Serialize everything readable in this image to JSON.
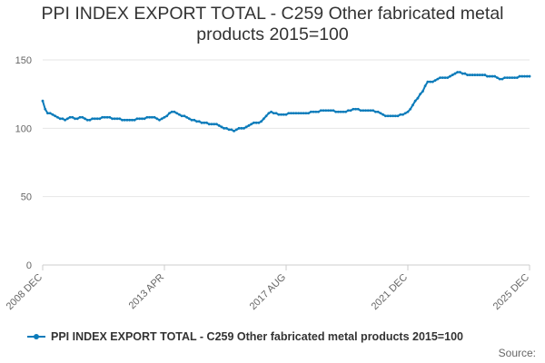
{
  "title_line1": "PPI INDEX EXPORT TOTAL - C259 Other fabricated metal",
  "title_line2": "products 2015=100",
  "legend_label": "PPI INDEX EXPORT TOTAL - C259 Other fabricated metal products 2015=100",
  "source_label": "Source:",
  "colors": {
    "series": "#0b7bba",
    "grid": "#e6e6e6",
    "axis_text": "#666666"
  },
  "chart_data": {
    "type": "line",
    "title": "PPI INDEX EXPORT TOTAL - C259 Other fabricated metal products 2015=100",
    "xlabel": "",
    "ylabel": "",
    "ylim": [
      0,
      150
    ],
    "yticks": [
      0,
      50,
      100,
      150
    ],
    "xticks": [
      "2008 DEC",
      "2013 APR",
      "2017 AUG",
      "2021 DEC",
      "2025 DEC"
    ],
    "grid": true,
    "legend_position": "bottom",
    "series": [
      {
        "name": "PPI INDEX EXPORT TOTAL - C259 Other fabricated metal products 2015=100",
        "x_start": "2008-12",
        "frequency": "monthly",
        "values": [
          120,
          114,
          111,
          111,
          110,
          109,
          108,
          107,
          107,
          106,
          107,
          108,
          108,
          107,
          107,
          108,
          108,
          107,
          106,
          106,
          107,
          107,
          107,
          107,
          108,
          108,
          108,
          108,
          107,
          107,
          107,
          107,
          106,
          106,
          106,
          106,
          106,
          106,
          107,
          107,
          107,
          107,
          108,
          108,
          108,
          108,
          107,
          106,
          107,
          108,
          109,
          111,
          112,
          112,
          111,
          110,
          109,
          109,
          108,
          107,
          106,
          106,
          105,
          105,
          104,
          104,
          104,
          103,
          103,
          103,
          103,
          102,
          101,
          100,
          100,
          99,
          99,
          98,
          99,
          100,
          100,
          100,
          101,
          102,
          103,
          104,
          104,
          104,
          105,
          107,
          109,
          111,
          112,
          111,
          111,
          110,
          110,
          110,
          110,
          111,
          111,
          111,
          111,
          111,
          111,
          111,
          111,
          111,
          112,
          112,
          112,
          112,
          113,
          113,
          113,
          113,
          113,
          113,
          112,
          112,
          112,
          112,
          112,
          113,
          113,
          114,
          114,
          114,
          113,
          113,
          113,
          113,
          113,
          113,
          112,
          112,
          111,
          110,
          109,
          109,
          109,
          109,
          109,
          109,
          110,
          110,
          111,
          112,
          114,
          117,
          120,
          122,
          125,
          127,
          131,
          134,
          134,
          134,
          135,
          136,
          137,
          137,
          137,
          137,
          138,
          139,
          140,
          141,
          141,
          140,
          140,
          139,
          139,
          139,
          139,
          139,
          139,
          139,
          139,
          138,
          138,
          138,
          138,
          137,
          136,
          136,
          137,
          137,
          137,
          137,
          137,
          137,
          138,
          138,
          138,
          138,
          138
        ]
      }
    ]
  }
}
